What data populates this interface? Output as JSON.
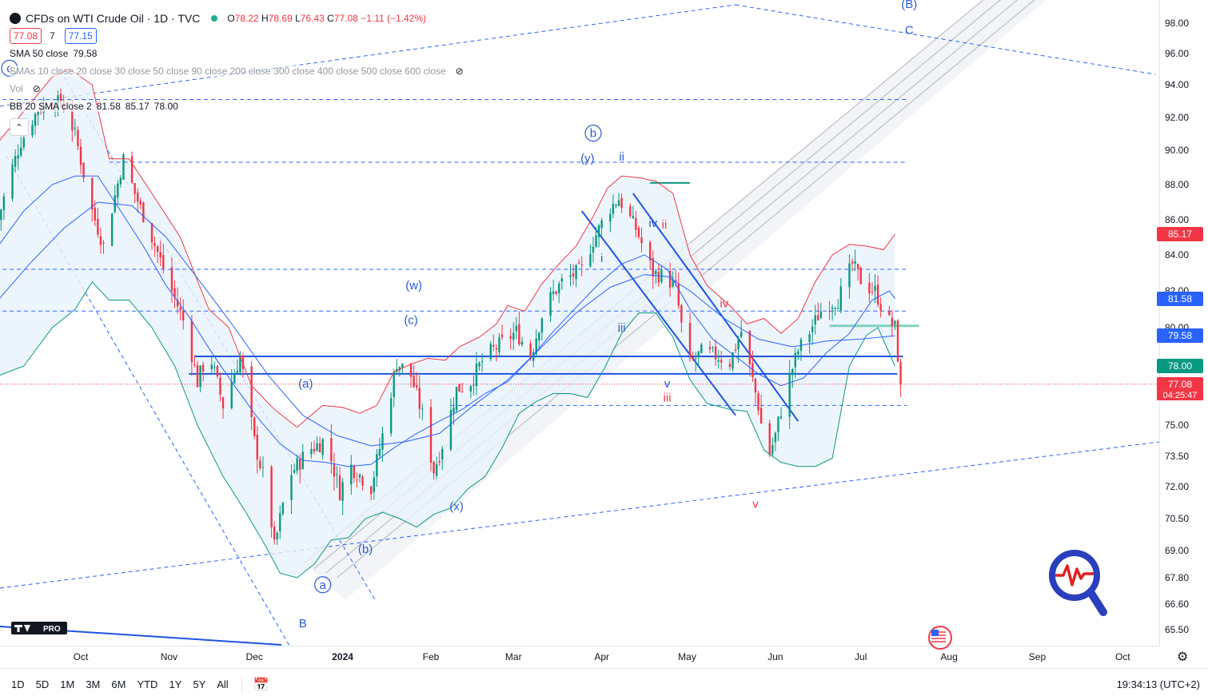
{
  "header": {
    "title": "CFDs on WTI Crude Oil · 1D · TVC",
    "ohlc": {
      "o_label": "O",
      "o": "78.22",
      "h_label": "H",
      "h": "78.69",
      "l_label": "L",
      "l": "76.43",
      "c_label": "C",
      "c": "77.08",
      "chg": "−1.11 (−1.42%)"
    },
    "bid": "77.08",
    "spread": "7",
    "ask": "77.15"
  },
  "indicators": {
    "sma50": {
      "label": "SMA 50 close",
      "value": "79.58"
    },
    "smas": {
      "label": "SMAs 10 close 20 close 30 close 50 close 90 close 200 close 300 close 400 close 500 close 600 close"
    },
    "vol": {
      "label": "Vol"
    },
    "bb": {
      "label": "BB 20 SMA close 2",
      "basis": "81.58",
      "upper": "85.17",
      "lower": "78.00"
    }
  },
  "colors": {
    "up": "#089981",
    "down": "#f23645",
    "blue": "#1e53e5",
    "bb_upper": "#f23645",
    "bb_lower": "#089981",
    "bb_fill": "#e9f3fb"
  },
  "chart_data": {
    "type": "candlestick",
    "title": "CFDs on WTI Crude Oil · 1D · TVC",
    "ylim": [
      64.8,
      99.1
    ],
    "y_ticks": [
      "98.00",
      "96.00",
      "94.00",
      "92.00",
      "90.00",
      "88.00",
      "86.00",
      "84.00",
      "82.00",
      "80.00",
      "78.00",
      "77.08",
      "75.00",
      "73.50",
      "72.00",
      "70.50",
      "69.00",
      "67.80",
      "66.60",
      "65.50"
    ],
    "x_ticks": [
      {
        "label": "Oct",
        "day": 10,
        "bold": false
      },
      {
        "label": "Nov",
        "day": 41,
        "bold": false
      },
      {
        "label": "Dec",
        "day": 71,
        "bold": false
      },
      {
        "label": "2024",
        "day": 102,
        "bold": true
      },
      {
        "label": "Feb",
        "day": 133,
        "bold": false
      },
      {
        "label": "Mar",
        "day": 162,
        "bold": false
      },
      {
        "label": "Apr",
        "day": 193,
        "bold": false
      },
      {
        "label": "May",
        "day": 223,
        "bold": false
      },
      {
        "label": "Jun",
        "day": 254,
        "bold": false
      },
      {
        "label": "Jul",
        "day": 284,
        "bold": false
      },
      {
        "label": "Aug",
        "day": 315,
        "bold": false
      },
      {
        "label": "Sep",
        "day": 346,
        "bold": false
      },
      {
        "label": "Oct",
        "day": 376,
        "bold": false
      }
    ],
    "close_path": [
      [
        -19,
        86.0
      ],
      [
        -15,
        88.5
      ],
      [
        -11,
        90.5
      ],
      [
        -5,
        92.5
      ],
      [
        3,
        93.0
      ],
      [
        8,
        91.0
      ],
      [
        13,
        87.0
      ],
      [
        18,
        84.5
      ],
      [
        25,
        89.5
      ],
      [
        29,
        87.5
      ],
      [
        35,
        85.0
      ],
      [
        42,
        82.0
      ],
      [
        47,
        80.0
      ],
      [
        51,
        77.2
      ],
      [
        55,
        78.8
      ],
      [
        60,
        76.0
      ],
      [
        66,
        78.5
      ],
      [
        71,
        74.2
      ],
      [
        76,
        71.5
      ],
      [
        78,
        69.1
      ],
      [
        83,
        72.5
      ],
      [
        90,
        73.8
      ],
      [
        96,
        74.3
      ],
      [
        101,
        71.8
      ],
      [
        105,
        73.0
      ],
      [
        112,
        72.0
      ],
      [
        116,
        74.5
      ],
      [
        121,
        78.2
      ],
      [
        126,
        77.5
      ],
      [
        130,
        75.5
      ],
      [
        134,
        72.8
      ],
      [
        138,
        74.5
      ],
      [
        142,
        76.8
      ],
      [
        147,
        77.2
      ],
      [
        152,
        78.5
      ],
      [
        158,
        79.2
      ],
      [
        163,
        79.8
      ],
      [
        168,
        78.5
      ],
      [
        173,
        81.2
      ],
      [
        179,
        82.5
      ],
      [
        186,
        83.2
      ],
      [
        190,
        84.8
      ],
      [
        195,
        86.5
      ],
      [
        199,
        87.2
      ],
      [
        205,
        85.5
      ],
      [
        211,
        83.0
      ],
      [
        215,
        82.8
      ],
      [
        219,
        82.2
      ],
      [
        223,
        78.0
      ],
      [
        228,
        78.7
      ],
      [
        234,
        78.5
      ],
      [
        238,
        78.2
      ],
      [
        242,
        79.8
      ],
      [
        248,
        76.0
      ],
      [
        251,
        73.2
      ],
      [
        254,
        74.5
      ],
      [
        258,
        77.0
      ],
      [
        262,
        78.8
      ],
      [
        266,
        79.8
      ],
      [
        271,
        81.2
      ],
      [
        276,
        81.5
      ],
      [
        281,
        83.5
      ],
      [
        285,
        82.3
      ],
      [
        289,
        82.0
      ],
      [
        293,
        80.5
      ],
      [
        296,
        80.0
      ],
      [
        298,
        77.08
      ]
    ],
    "bb_upper": [
      [
        -19,
        90.5
      ],
      [
        0,
        94.5
      ],
      [
        6,
        95.0
      ],
      [
        14,
        94.0
      ],
      [
        20,
        89.5
      ],
      [
        27,
        89.5
      ],
      [
        35,
        87.5
      ],
      [
        45,
        85.0
      ],
      [
        55,
        81.0
      ],
      [
        62,
        80.0
      ],
      [
        70,
        77.0
      ],
      [
        78,
        75.8
      ],
      [
        86,
        74.9
      ],
      [
        95,
        76.0
      ],
      [
        102,
        75.9
      ],
      [
        108,
        75.6
      ],
      [
        114,
        76.0
      ],
      [
        120,
        77.7
      ],
      [
        126,
        78.1
      ],
      [
        132,
        78.4
      ],
      [
        138,
        78.3
      ],
      [
        143,
        79.0
      ],
      [
        150,
        79.5
      ],
      [
        156,
        80.2
      ],
      [
        160,
        81.2
      ],
      [
        166,
        80.9
      ],
      [
        172,
        82.4
      ],
      [
        178,
        83.5
      ],
      [
        184,
        84.5
      ],
      [
        190,
        86.2
      ],
      [
        195,
        87.8
      ],
      [
        200,
        88.5
      ],
      [
        206,
        88.4
      ],
      [
        212,
        88.2
      ],
      [
        218,
        87.5
      ],
      [
        224,
        84.0
      ],
      [
        230,
        82.3
      ],
      [
        238,
        81.2
      ],
      [
        244,
        80.2
      ],
      [
        250,
        80.5
      ],
      [
        256,
        79.7
      ],
      [
        262,
        80.5
      ],
      [
        268,
        82.5
      ],
      [
        274,
        84.0
      ],
      [
        280,
        84.6
      ],
      [
        286,
        84.5
      ],
      [
        292,
        84.3
      ],
      [
        296,
        85.17
      ]
    ],
    "bb_lower": [
      [
        -19,
        77.5
      ],
      [
        -10,
        78.0
      ],
      [
        0,
        80.0
      ],
      [
        8,
        81.0
      ],
      [
        14,
        82.5
      ],
      [
        20,
        81.5
      ],
      [
        27,
        81.5
      ],
      [
        35,
        80.0
      ],
      [
        43,
        78.0
      ],
      [
        51,
        75.0
      ],
      [
        60,
        72.5
      ],
      [
        68,
        70.8
      ],
      [
        75,
        69.2
      ],
      [
        80,
        68.0
      ],
      [
        86,
        67.8
      ],
      [
        92,
        68.4
      ],
      [
        98,
        69.5
      ],
      [
        104,
        69.6
      ],
      [
        110,
        70.5
      ],
      [
        116,
        70.8
      ],
      [
        122,
        70.5
      ],
      [
        128,
        70.1
      ],
      [
        134,
        70.7
      ],
      [
        140,
        71.0
      ],
      [
        146,
        71.9
      ],
      [
        152,
        72.5
      ],
      [
        158,
        73.9
      ],
      [
        164,
        75.6
      ],
      [
        170,
        76.2
      ],
      [
        176,
        76.6
      ],
      [
        182,
        76.6
      ],
      [
        188,
        76.4
      ],
      [
        194,
        77.9
      ],
      [
        200,
        79.7
      ],
      [
        206,
        80.8
      ],
      [
        212,
        80.8
      ],
      [
        218,
        79.5
      ],
      [
        224,
        77.3
      ],
      [
        230,
        76.1
      ],
      [
        238,
        75.8
      ],
      [
        244,
        75.7
      ],
      [
        250,
        73.8
      ],
      [
        256,
        73.2
      ],
      [
        262,
        73.0
      ],
      [
        268,
        73.0
      ],
      [
        274,
        73.4
      ],
      [
        280,
        78.0
      ],
      [
        286,
        79.6
      ],
      [
        290,
        80.0
      ],
      [
        296,
        78.0
      ]
    ],
    "bb_basis": [
      [
        -19,
        84.5
      ],
      [
        -10,
        86.5
      ],
      [
        0,
        88.0
      ],
      [
        8,
        88.5
      ],
      [
        16,
        88.5
      ],
      [
        24,
        86.5
      ],
      [
        32,
        84.5
      ],
      [
        40,
        82.3
      ],
      [
        48,
        80.6
      ],
      [
        56,
        78.7
      ],
      [
        64,
        77.0
      ],
      [
        72,
        75.4
      ],
      [
        80,
        74.1
      ],
      [
        88,
        73.3
      ],
      [
        96,
        73.2
      ],
      [
        104,
        73.0
      ],
      [
        112,
        73.1
      ],
      [
        120,
        73.9
      ],
      [
        128,
        74.6
      ],
      [
        136,
        75.2
      ],
      [
        144,
        75.8
      ],
      [
        152,
        76.6
      ],
      [
        160,
        77.2
      ],
      [
        168,
        78.4
      ],
      [
        176,
        79.8
      ],
      [
        184,
        81.1
      ],
      [
        192,
        82.4
      ],
      [
        200,
        83.5
      ],
      [
        208,
        84.0
      ],
      [
        216,
        83.2
      ],
      [
        224,
        81.0
      ],
      [
        232,
        79.4
      ],
      [
        240,
        78.5
      ],
      [
        248,
        77.6
      ],
      [
        256,
        77.0
      ],
      [
        264,
        77.4
      ],
      [
        272,
        78.7
      ],
      [
        280,
        79.7
      ],
      [
        288,
        81.5
      ],
      [
        294,
        82.0
      ],
      [
        296,
        81.58
      ]
    ],
    "sma50": [
      [
        -19,
        81.5
      ],
      [
        -8,
        83.5
      ],
      [
        4,
        85.5
      ],
      [
        16,
        87.0
      ],
      [
        28,
        86.8
      ],
      [
        40,
        85.0
      ],
      [
        52,
        82.5
      ],
      [
        64,
        80.0
      ],
      [
        76,
        77.5
      ],
      [
        88,
        75.5
      ],
      [
        100,
        74.5
      ],
      [
        112,
        74.0
      ],
      [
        124,
        74.2
      ],
      [
        136,
        74.6
      ],
      [
        148,
        76.0
      ],
      [
        160,
        77.3
      ],
      [
        172,
        79.0
      ],
      [
        184,
        80.8
      ],
      [
        196,
        82.2
      ],
      [
        208,
        82.9
      ],
      [
        216,
        82.8
      ],
      [
        224,
        82.0
      ],
      [
        236,
        80.5
      ],
      [
        248,
        79.4
      ],
      [
        260,
        79.0
      ],
      [
        272,
        79.3
      ],
      [
        284,
        79.4
      ],
      [
        296,
        79.58
      ]
    ],
    "h_levels": {
      "dashed": [
        {
          "value": 93.1,
          "from": -20,
          "to": 296
        },
        {
          "value": 89.3,
          "from": 20,
          "to": 296
        },
        {
          "value": 83.2,
          "from": -20,
          "to": 296
        },
        {
          "value": 80.9,
          "from": -20,
          "to": 296
        },
        {
          "value": 76.0,
          "from": 140,
          "to": 296
        }
      ],
      "solid_blue": [
        {
          "value": 78.5,
          "from": 50,
          "to": 296
        },
        {
          "value": 77.6,
          "from": 48,
          "to": 294
        }
      ],
      "teal": {
        "value": 80.1,
        "from": 273,
        "to": 296
      },
      "green_short": {
        "value": 88.1,
        "from": 210,
        "to": 224
      },
      "price_line": {
        "value": 77.08
      }
    },
    "labels": [
      {
        "text": "b",
        "circled": true,
        "day": 190,
        "value": 90.8,
        "color": "blue"
      },
      {
        "text": "(y)",
        "day": 188,
        "value": 89.3,
        "color": "blue"
      },
      {
        "text": "ii",
        "day": 200,
        "value": 89.4,
        "color": "blue"
      },
      {
        "text": "iv",
        "day": 211,
        "value": 85.6,
        "color": "blue"
      },
      {
        "text": "ii",
        "day": 215,
        "value": 85.5,
        "color": "red"
      },
      {
        "text": "(w)",
        "day": 127,
        "value": 82.1,
        "color": "blue"
      },
      {
        "text": "(c)",
        "day": 126,
        "value": 80.2,
        "color": "blue"
      },
      {
        "text": "i",
        "day": 193,
        "value": 83.6,
        "color": "blue"
      },
      {
        "text": "iii",
        "day": 200,
        "value": 79.8,
        "color": "blue"
      },
      {
        "text": "iv",
        "day": 236,
        "value": 81.1,
        "color": "red"
      },
      {
        "text": "v",
        "day": 216,
        "value": 76.9,
        "color": "blue"
      },
      {
        "text": "iii",
        "day": 216,
        "value": 76.2,
        "color": "red"
      },
      {
        "text": "(a)",
        "day": 89,
        "value": 76.9,
        "color": "blue"
      },
      {
        "text": "(x)",
        "day": 142,
        "value": 70.9,
        "color": "blue"
      },
      {
        "text": "(b)",
        "day": 110,
        "value": 68.9,
        "color": "blue"
      },
      {
        "text": "a",
        "circled": true,
        "day": 95,
        "value": 67.3,
        "color": "blue"
      },
      {
        "text": "B",
        "day": 88,
        "value": 65.6,
        "color": "blue"
      },
      {
        "text": "v",
        "day": 247,
        "value": 71.0,
        "color": "red"
      },
      {
        "text": "C",
        "day": 301,
        "value": 97.3,
        "color": "blue"
      },
      {
        "text": "(B)",
        "day": 301,
        "value": 99.0,
        "color": "blue"
      },
      {
        "text": "c",
        "circled": true,
        "day": -15,
        "value": 94.8,
        "color": "blue"
      }
    ]
  },
  "xaxis": {
    "labels": [
      "Oct",
      "Nov",
      "Dec",
      "2024",
      "Feb",
      "Mar",
      "Apr",
      "May",
      "Jun",
      "Jul",
      "Aug",
      "Sep",
      "Oct"
    ]
  },
  "yaxis_badges": {
    "bb_upper": "85.17",
    "bb_basis": "81.58",
    "sma": "79.58",
    "bb_lower": "78.00",
    "last": "77.08",
    "countdown": "04:25:47"
  },
  "bottom_bar": {
    "timeframes": [
      "1D",
      "5D",
      "1M",
      "3M",
      "6M",
      "YTD",
      "1Y",
      "5Y",
      "All"
    ],
    "clock": "19:34:13 (UTC+2)"
  },
  "branding": {
    "logo_text": "PRO"
  }
}
